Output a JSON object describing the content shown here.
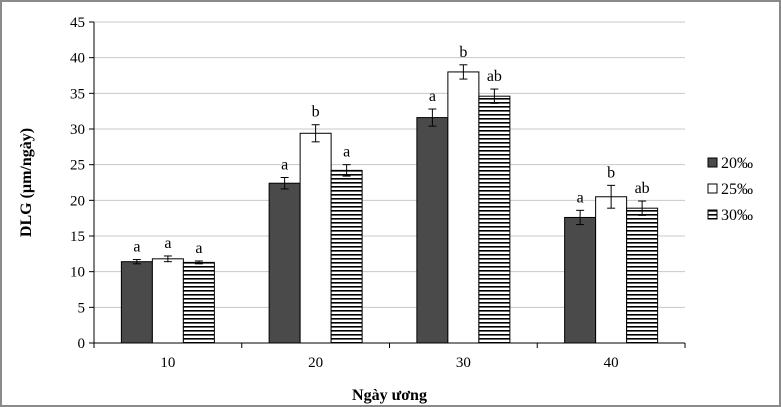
{
  "chart_data": {
    "type": "bar",
    "title": "",
    "xlabel": "Ngày ương",
    "ylabel": "DLG (µm/ngày)",
    "ylim": [
      0,
      45
    ],
    "yticks": [
      0,
      5,
      10,
      15,
      20,
      25,
      30,
      35,
      40,
      45
    ],
    "categories": [
      "10",
      "20",
      "30",
      "40"
    ],
    "grid": true,
    "legend_position": "right",
    "series": [
      {
        "name": "20‰",
        "fill": "solid-dark",
        "color": "#4a4a4a",
        "values": [
          11.4,
          22.4,
          31.6,
          17.6
        ],
        "errors": [
          0.3,
          0.8,
          1.2,
          1.0
        ],
        "labels": [
          "a",
          "a",
          "a",
          "a"
        ]
      },
      {
        "name": "25‰",
        "fill": "white",
        "color": "#ffffff",
        "values": [
          11.8,
          29.4,
          38.0,
          20.5
        ],
        "errors": [
          0.4,
          1.2,
          1.0,
          1.6
        ],
        "labels": [
          "a",
          "b",
          "b",
          "b"
        ]
      },
      {
        "name": "30‰",
        "fill": "horizontal-stripes",
        "color": "#000000",
        "values": [
          11.3,
          24.2,
          34.6,
          18.9
        ],
        "errors": [
          0.2,
          0.8,
          1.0,
          1.0
        ],
        "labels": [
          "a",
          "a",
          "ab",
          "ab"
        ]
      }
    ]
  }
}
